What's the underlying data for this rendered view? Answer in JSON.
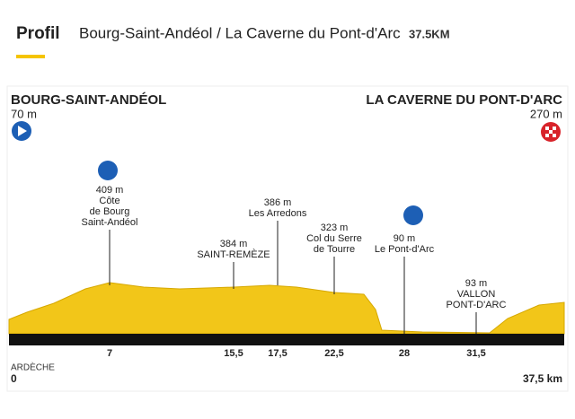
{
  "header": {
    "title": "Profil",
    "route": "Bourg-Saint-Andéol / La Caverne du Pont-d'Arc",
    "distance": "37.5KM"
  },
  "start": {
    "name": "BOURG-SAINT-ANDÉOL",
    "altitude": "70 m"
  },
  "finish": {
    "name": "LA CAVERNE DU PONT-D'ARC",
    "altitude": "270 m"
  },
  "points": [
    {
      "altitude": "409 m",
      "lines": [
        "Côte",
        "de Bourg",
        "Saint-Andéol"
      ],
      "km": "7"
    },
    {
      "altitude": "384 m",
      "lines": [
        "SAINT-REMÈZE"
      ],
      "km": "15,5"
    },
    {
      "altitude": "386 m",
      "lines": [
        "Les Arredons"
      ],
      "km": "17,5"
    },
    {
      "altitude": "323 m",
      "lines": [
        "Col du Serre",
        "de Tourre"
      ],
      "km": "22,5"
    },
    {
      "altitude": "90 m",
      "lines": [
        "Le Pont-d'Arc"
      ],
      "km": "28"
    },
    {
      "altitude": "93 m",
      "lines": [
        "VALLON",
        "PONT-D'ARC"
      ],
      "km": "31,5"
    }
  ],
  "footer": {
    "region": "ARDÈCHE",
    "start_km": "0",
    "end_km": "37,5 km"
  }
}
